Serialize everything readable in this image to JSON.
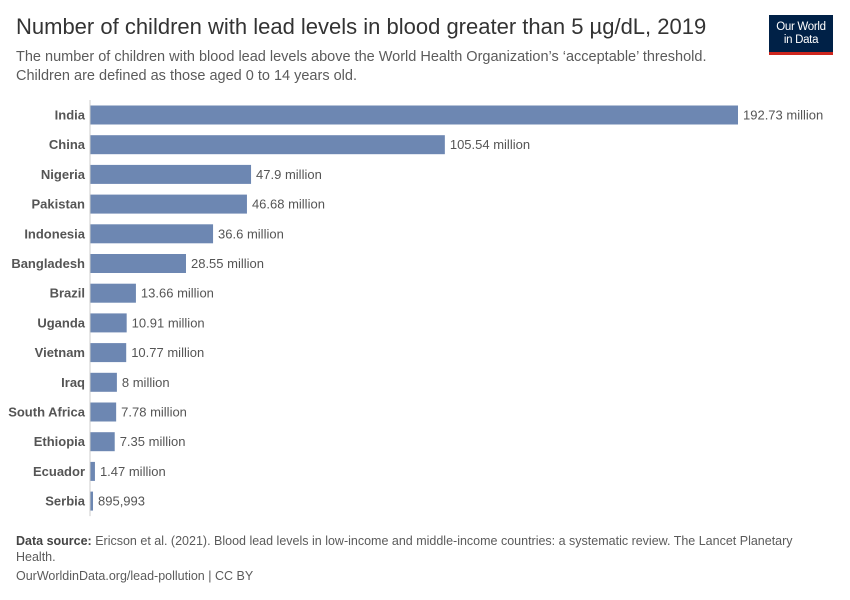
{
  "header": {
    "title": "Number of children with lead levels in blood greater than 5 µg/dL, 2019",
    "subtitle": "The number of children with blood lead levels above the World Health Organization’s ‘acceptable’ threshold. Children are defined as those aged 0 to 14 years old.",
    "logo_line1": "Our World",
    "logo_line2": "in Data"
  },
  "chart_data": {
    "type": "bar",
    "orientation": "horizontal",
    "title": "Number of children with lead levels in blood greater than 5 µg/dL, 2019",
    "unit": "million",
    "bar_color": "#6d87b2",
    "categories": [
      "India",
      "China",
      "Nigeria",
      "Pakistan",
      "Indonesia",
      "Bangladesh",
      "Brazil",
      "Uganda",
      "Vietnam",
      "Iraq",
      "South Africa",
      "Ethiopia",
      "Ecuador",
      "Serbia"
    ],
    "values": [
      192.73,
      105.54,
      47.9,
      46.68,
      36.6,
      28.55,
      13.66,
      10.91,
      10.77,
      8,
      7.78,
      7.35,
      1.47,
      0.895993
    ],
    "labels": [
      "192.73 million",
      "105.54 million",
      "47.9 million",
      "46.68 million",
      "36.6 million",
      "28.55 million",
      "13.66 million",
      "10.91 million",
      "10.77 million",
      "8 million",
      "7.78 million",
      "7.35 million",
      "1.47 million",
      "895,993"
    ]
  },
  "footer": {
    "source_label": "Data source:",
    "source_text": " Ericson et al. (2021). Blood lead levels in low-income and middle-income countries: a systematic review. The Lancet Planetary Health.",
    "url": "OurWorldinData.org/lead-pollution | CC BY"
  }
}
